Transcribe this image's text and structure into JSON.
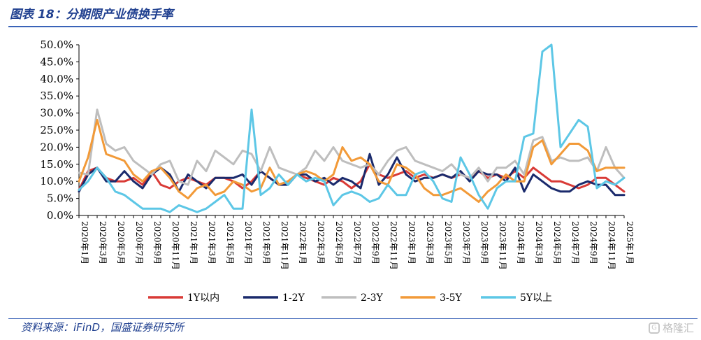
{
  "header": {
    "title": "图表 18：分期限产业债换手率"
  },
  "footer": {
    "source": "资料来源：iFinD，国盛证券研究所",
    "watermark": "格隆汇"
  },
  "chart_data": {
    "type": "line",
    "x": [
      "2020年1月",
      "2020年2月",
      "2020年3月",
      "2020年4月",
      "2020年5月",
      "2020年6月",
      "2020年7月",
      "2020年8月",
      "2020年9月",
      "2020年10月",
      "2020年11月",
      "2020年12月",
      "2021年1月",
      "2021年2月",
      "2021年3月",
      "2021年4月",
      "2021年5月",
      "2021年6月",
      "2021年7月",
      "2021年8月",
      "2021年9月",
      "2021年10月",
      "2021年11月",
      "2021年12月",
      "2022年1月",
      "2022年2月",
      "2022年3月",
      "2022年4月",
      "2022年5月",
      "2022年6月",
      "2022年7月",
      "2022年8月",
      "2022年9月",
      "2022年10月",
      "2022年11月",
      "2022年12月",
      "2023年1月",
      "2023年2月",
      "2023年3月",
      "2023年4月",
      "2023年5月",
      "2023年6月",
      "2023年7月",
      "2023年8月",
      "2023年9月",
      "2023年10月",
      "2023年11月",
      "2023年12月",
      "2024年1月",
      "2024年2月",
      "2024年3月",
      "2024年4月",
      "2024年5月",
      "2024年6月",
      "2024年7月",
      "2024年8月",
      "2024年9月",
      "2024年10月",
      "2024年11月",
      "2024年12月",
      "2025年1月"
    ],
    "xticks": [
      "2020年1月",
      "2020年3月",
      "2020年5月",
      "2020年7月",
      "2020年9月",
      "2020年11月",
      "2021年1月",
      "2021年3月",
      "2021年5月",
      "2021年7月",
      "2021年9月",
      "2021年11月",
      "2022年1月",
      "2022年3月",
      "2022年5月",
      "2022年7月",
      "2022年9月",
      "2022年11月",
      "2023年1月",
      "2023年3月",
      "2023年5月",
      "2023年7月",
      "2023年9月",
      "2023年11月",
      "2024年1月",
      "2024年3月",
      "2024年5月",
      "2024年7月",
      "2024年9月",
      "2024年11月",
      "2025年1月"
    ],
    "ylim": [
      0,
      50
    ],
    "yticks": [
      "0.0%",
      "5.0%",
      "10.0%",
      "15.0%",
      "20.0%",
      "25.0%",
      "30.0%",
      "35.0%",
      "40.0%",
      "45.0%",
      "50.0%"
    ],
    "legend_position": "bottom",
    "series": [
      {
        "name": "1Y以内",
        "color": "#d93a36",
        "values": [
          7.5,
          13,
          14,
          11,
          10,
          10,
          11,
          9,
          13,
          9,
          8,
          10,
          11,
          10,
          9,
          11,
          11,
          10,
          8,
          10,
          13,
          11,
          9,
          10,
          12,
          11,
          10,
          9,
          11,
          10,
          8,
          10,
          15,
          12,
          11,
          12,
          13,
          11,
          12,
          11,
          12,
          11,
          12,
          11,
          13,
          11,
          12,
          11,
          13,
          11,
          14,
          12,
          10,
          10,
          9,
          8,
          9,
          11,
          11,
          9,
          7
        ]
      },
      {
        "name": "1-2Y",
        "color": "#1a2a6c",
        "values": [
          7,
          12,
          14,
          10,
          10,
          13,
          10,
          8,
          12,
          14,
          12,
          7,
          12,
          10,
          8,
          11,
          11,
          11,
          12,
          9,
          13,
          11,
          9,
          9,
          12,
          12,
          10,
          11,
          9,
          11,
          10,
          8,
          18,
          9,
          12,
          17,
          12,
          10,
          11,
          11,
          12,
          11,
          13,
          10,
          13,
          12,
          12,
          10,
          14,
          7,
          12,
          10,
          8,
          7,
          7,
          9,
          10,
          9,
          9,
          6,
          6
        ]
      },
      {
        "name": "2-3Y",
        "color": "#bebebe",
        "values": [
          12.5,
          12,
          31,
          21,
          19,
          20,
          16,
          14,
          12,
          15,
          16,
          10,
          9,
          16,
          13,
          19,
          17,
          15,
          19,
          18,
          13,
          20,
          14,
          13,
          12,
          14,
          19,
          16,
          20,
          16,
          15,
          14,
          15,
          12,
          16,
          19,
          20,
          16,
          15,
          14,
          13,
          15,
          12,
          11,
          14,
          10,
          14,
          14,
          16,
          12,
          22,
          23,
          16,
          17,
          16,
          16,
          17,
          13,
          20,
          14,
          11
        ]
      },
      {
        "name": "3-5Y",
        "color": "#f29a38",
        "values": [
          10,
          17,
          28,
          18,
          17,
          16,
          12,
          10,
          13,
          14,
          11,
          7,
          5,
          8,
          9,
          6,
          7,
          10,
          9,
          7,
          8,
          14,
          9,
          10,
          12,
          13,
          12,
          10,
          12,
          20,
          16,
          17,
          15,
          10,
          9,
          15,
          14,
          12,
          8,
          6,
          6,
          7,
          8,
          6,
          4,
          7,
          9,
          12,
          10,
          10,
          20,
          22,
          15,
          18,
          21,
          21,
          19,
          13,
          14,
          14,
          14
        ]
      },
      {
        "name": "5Y以上",
        "color": "#5dc7e6",
        "values": [
          7.5,
          10,
          14,
          11,
          7,
          6,
          4,
          2,
          2,
          2,
          1,
          3,
          2,
          1,
          2,
          4,
          6,
          2,
          2,
          31,
          6,
          8,
          12,
          9,
          12,
          10,
          11,
          10,
          3,
          6,
          7,
          6,
          4,
          5,
          9,
          6,
          6,
          12,
          13,
          10,
          5,
          4,
          17,
          12,
          6,
          2,
          8,
          10,
          10,
          23,
          24,
          48,
          50,
          20,
          24,
          28,
          26,
          8,
          10,
          9,
          11
        ]
      }
    ]
  }
}
